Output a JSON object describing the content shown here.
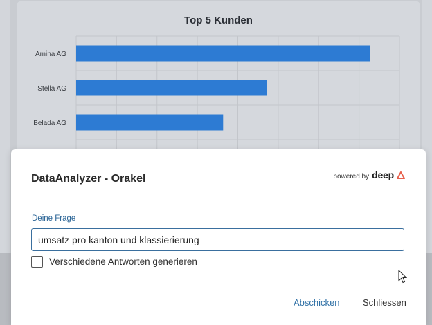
{
  "dashboard": {
    "chart_data": {
      "type": "bar",
      "orientation": "horizontal",
      "title": "Top 5 Kunden",
      "categories": [
        "Amina AG",
        "Stella AG",
        "Belada AG"
      ],
      "values": [
        100,
        65,
        50
      ],
      "xlim": [
        0,
        110
      ],
      "grid": true,
      "legend": "none",
      "bar_color": "#2d7bd3"
    }
  },
  "dialog": {
    "title": "DataAnalyzer - Orakel",
    "powered_by_label": "powered by",
    "brand_name": "deep",
    "brand_icon": "triangle-logo-icon",
    "brand_color": "#e8604c",
    "question_label": "Deine Frage",
    "question_value": "umsatz pro kanton und klassierierung",
    "multi_answer_label": "Verschiedene Antworten generieren",
    "multi_answer_checked": false,
    "submit_label": "Abschicken",
    "close_label": "Schliessen",
    "accent_color": "#2d6fa5"
  }
}
